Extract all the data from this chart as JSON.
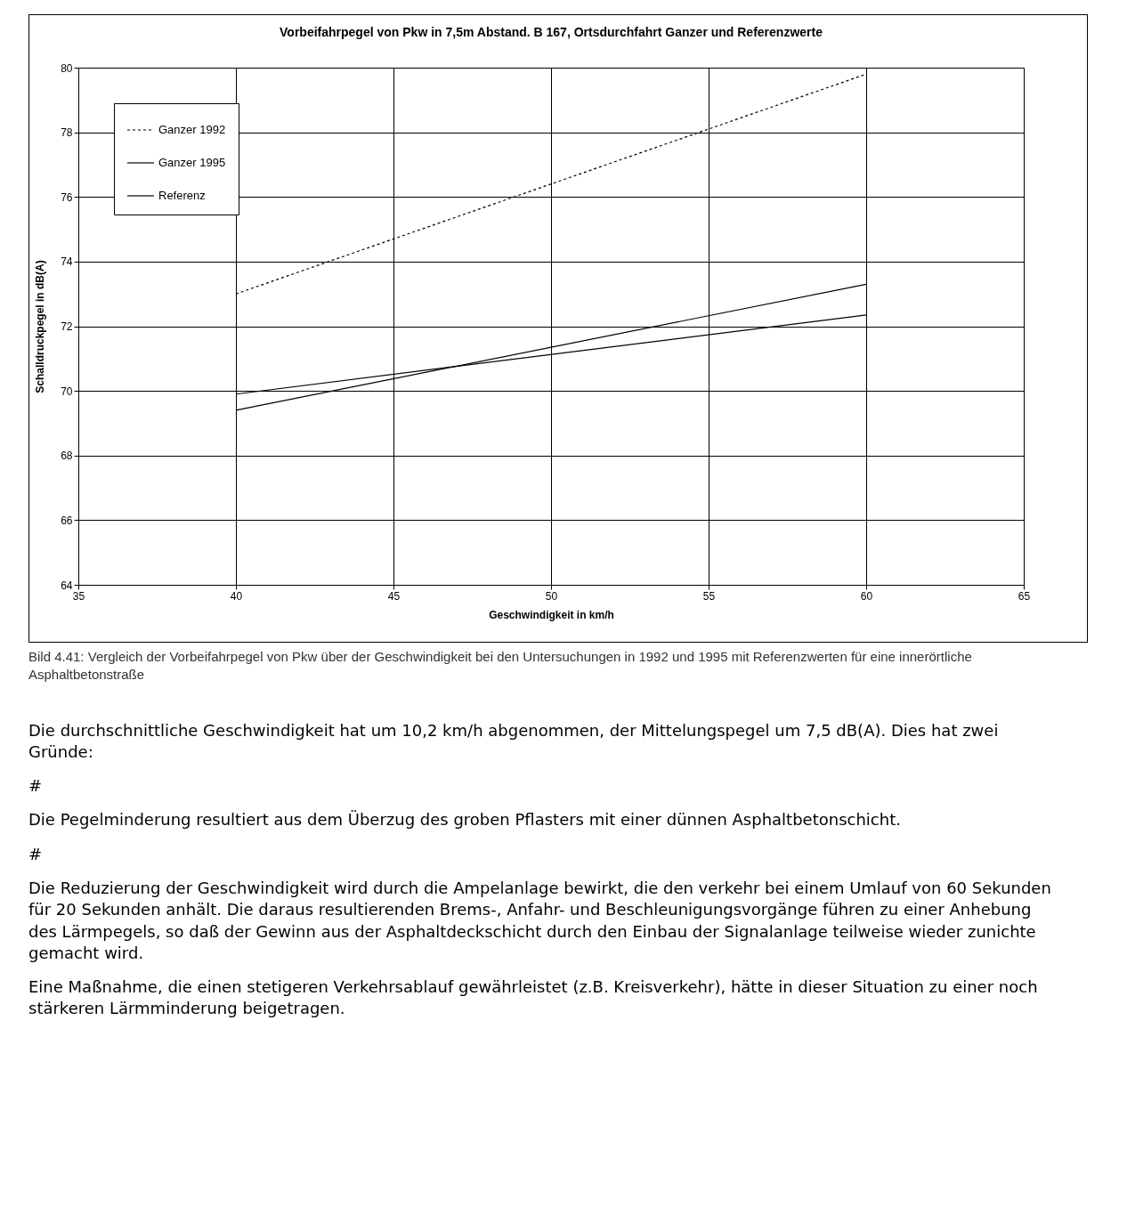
{
  "chart_data": {
    "type": "line",
    "title": "Vorbeifahrpegel von Pkw in 7,5m Abstand. B 167,  Ortsdurchfahrt Ganzer und Referenzwerte",
    "xlabel": "Geschwindigkeit in km/h",
    "ylabel": "Schalldruckpegel in dB(A)",
    "x": [
      40,
      60
    ],
    "series": [
      {
        "name": "Ganzer 1992",
        "color": "#000000",
        "line_style": "dotted",
        "values": [
          73.0,
          79.8
        ]
      },
      {
        "name": "Ganzer 1995",
        "color": "#000000",
        "line_style": "solid",
        "values": [
          69.9,
          72.35
        ]
      },
      {
        "name": "Referenz",
        "color": "#000000",
        "line_style": "solid",
        "values": [
          69.4,
          73.3
        ]
      }
    ],
    "xlim": [
      35,
      65
    ],
    "xticks": [
      35,
      40,
      45,
      50,
      55,
      60,
      65
    ],
    "ylim": [
      64,
      80
    ],
    "yticks": [
      64,
      66,
      68,
      70,
      72,
      74,
      76,
      78,
      80
    ],
    "grid": true,
    "legend": "top left",
    "marker": "none",
    "annotations": [
      "Bild 4.41: Vergleich der Vorbeifahrpegel von Pkw über der Geschwindigkeit bei den Untersuchungen in 1992 und 1995 mit Referenzwerten für eine innerörtliche Asphaltbetonstraße",
      "Die durchschnittliche Geschwindigkeit hat um 10,2 km/h abgenommen, der Mittelungspegel um 7,5 dB(A). Dies hat zwei Gründe:",
      "#",
      "Die Pegelminderung resultiert aus dem Überzug des groben Pflasters mit einer dünnen Asphaltbetonschicht.",
      "#",
      "Die Reduzierung der Geschwindigkeit wird durch die Ampelanlage bewirkt, die den verkehr bei einem Umlauf von 60 Sekunden für 20 Sekunden anhält. Die daraus resultierenden Brems-, Anfahr- und Beschleunigungsvorgänge führen zu einer Anhebung des Lärmpegels, so daß der Gewinn aus der Asphaltdeckschicht durch den Einbau der Signalanlage teilweise wieder zunichte gemacht wird.",
      "Eine Maßnahme, die einen stetigeren Verkehrsablauf gewährleistet (z.B. Kreisverkehr), hätte in dieser Situation zu einer noch stärkeren Lärmminderung beigetragen."
    ]
  }
}
